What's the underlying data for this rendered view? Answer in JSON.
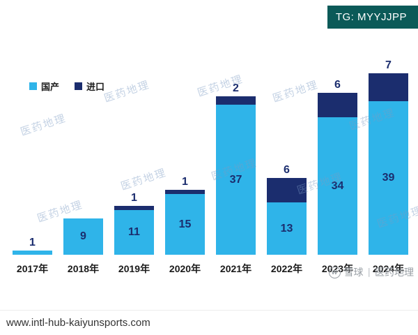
{
  "badge": {
    "text": "TG: MYYJJPP"
  },
  "footer": {
    "url": "www.intl-hub-kaiyunsports.com"
  },
  "watermark": {
    "text": "医药地理",
    "brand": "雪球",
    "brand_secondary": "医药地理",
    "icon_letter": "W"
  },
  "legend": [
    {
      "label": "国产",
      "color": "#2fb4e9"
    },
    {
      "label": "进口",
      "color": "#1b2d6e"
    }
  ],
  "chart_data": {
    "type": "bar",
    "stacked": true,
    "title": "",
    "xlabel": "",
    "ylabel": "",
    "grid": false,
    "legend_position": "top-left",
    "ylim": [
      0,
      48
    ],
    "categories": [
      "2017年",
      "2018年",
      "2019年",
      "2020年",
      "2021年",
      "2022年",
      "2023年",
      "2024年"
    ],
    "series": [
      {
        "name": "国产",
        "color": "#2fb4e9",
        "values": [
          1,
          9,
          11,
          15,
          37,
          13,
          34,
          39
        ]
      },
      {
        "name": "进口",
        "color": "#1b2d6e",
        "values": [
          0,
          0,
          1,
          1,
          2,
          6,
          6,
          7
        ]
      }
    ],
    "label_color": "#1b2d6e"
  }
}
